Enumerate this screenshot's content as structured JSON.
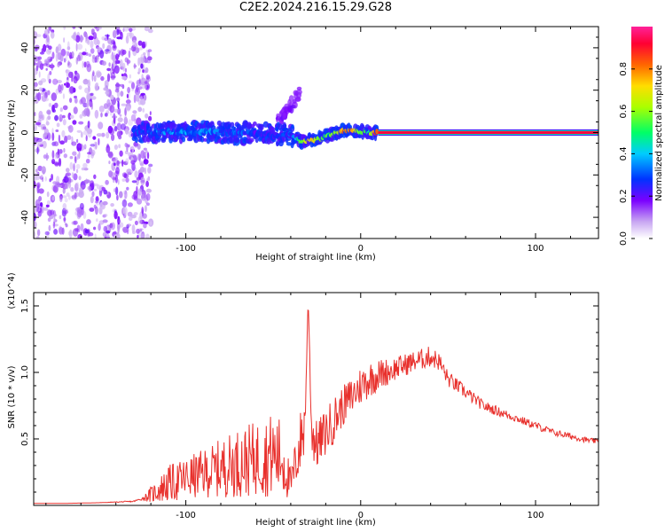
{
  "title": "C2E2.2024.216.15.29.G28",
  "chart_data": [
    {
      "type": "heatmap",
      "xlabel": "Height of straight line (km)",
      "ylabel": "Frequency (Hz)",
      "xlim": [
        -187,
        136
      ],
      "ylim": [
        -50,
        50
      ],
      "x_ticks": [
        -100,
        0,
        100
      ],
      "y_ticks": [
        -40,
        -20,
        0,
        20,
        40
      ],
      "colorbar": {
        "label": "Normalized spectral amplitude",
        "range": [
          0,
          1
        ],
        "ticks": [
          "0.0",
          "0.2",
          "0.4",
          "0.6",
          "0.8"
        ]
      },
      "ridge": {
        "x": [
          -130,
          -120,
          -110,
          -100,
          -90,
          -80,
          -70,
          -60,
          -50,
          -40,
          -35,
          -30,
          -25,
          -20,
          -15,
          -10,
          -5,
          0,
          5,
          10,
          20,
          40,
          60,
          80,
          100,
          120,
          136
        ],
        "freq": [
          1,
          0,
          0.5,
          0,
          0.5,
          0,
          -0.5,
          0,
          -1,
          -1,
          -4,
          -4,
          -3.5,
          -1.5,
          -0.5,
          1,
          1,
          0.5,
          0,
          0,
          0,
          0,
          0,
          0,
          0,
          0,
          0
        ],
        "amplitude": [
          0.3,
          0.35,
          0.4,
          0.4,
          0.4,
          0.35,
          0.35,
          0.3,
          0.3,
          0.35,
          0.55,
          0.8,
          0.7,
          0.6,
          0.6,
          0.85,
          0.85,
          0.6,
          0.55,
          1,
          1,
          1,
          1,
          1,
          1,
          1,
          1
        ]
      },
      "side_feature": {
        "x": [
          -48,
          -35
        ],
        "freq": [
          5,
          18
        ],
        "amplitude": 0.2
      },
      "noise_region": {
        "x": [
          -187,
          -120
        ],
        "freq": [
          -50,
          50
        ],
        "amplitude": 0.05
      }
    },
    {
      "type": "line",
      "xlabel": "Height of straight line (km)",
      "ylabel": "SNR (10 * v/v)",
      "y_multiplier": "(x10^4)",
      "xlim": [
        -187,
        136
      ],
      "ylim": [
        0,
        16000
      ],
      "x_ticks": [
        -100,
        0,
        100
      ],
      "y_ticks": [
        "0.5",
        "1.0",
        "1.5"
      ],
      "series": [
        {
          "color": "#e8302c",
          "x": [
            -187,
            -170,
            -150,
            -130,
            -125,
            -120,
            -115,
            -110,
            -100,
            -90,
            -80,
            -70,
            -60,
            -50,
            -45,
            -40,
            -35,
            -32,
            -30,
            -28,
            -25,
            -20,
            -15,
            -10,
            -5,
            0,
            5,
            10,
            20,
            30,
            35,
            40,
            45,
            50,
            60,
            70,
            80,
            90,
            100,
            110,
            120,
            130,
            136
          ],
          "y": [
            150,
            150,
            200,
            300,
            500,
            800,
            1200,
            1600,
            2000,
            2400,
            2800,
            3200,
            3500,
            3800,
            3600,
            1500,
            4500,
            6000,
            15500,
            5500,
            4500,
            5500,
            6500,
            7500,
            8200,
            9000,
            9500,
            9800,
            10300,
            10800,
            11000,
            11200,
            10800,
            9500,
            8500,
            7500,
            7000,
            6500,
            6000,
            5500,
            5200,
            4900,
            4800
          ],
          "jitter": [
            0,
            0,
            0,
            50,
            100,
            600,
            1000,
            1400,
            1600,
            1800,
            2200,
            2600,
            2800,
            3200,
            3000,
            1200,
            2500,
            2200,
            0,
            2000,
            1800,
            1800,
            1800,
            1500,
            1500,
            1500,
            1400,
            1200,
            900,
            800,
            800,
            800,
            700,
            600,
            500,
            400,
            350,
            300,
            300,
            250,
            250,
            200,
            200
          ]
        }
      ]
    }
  ]
}
